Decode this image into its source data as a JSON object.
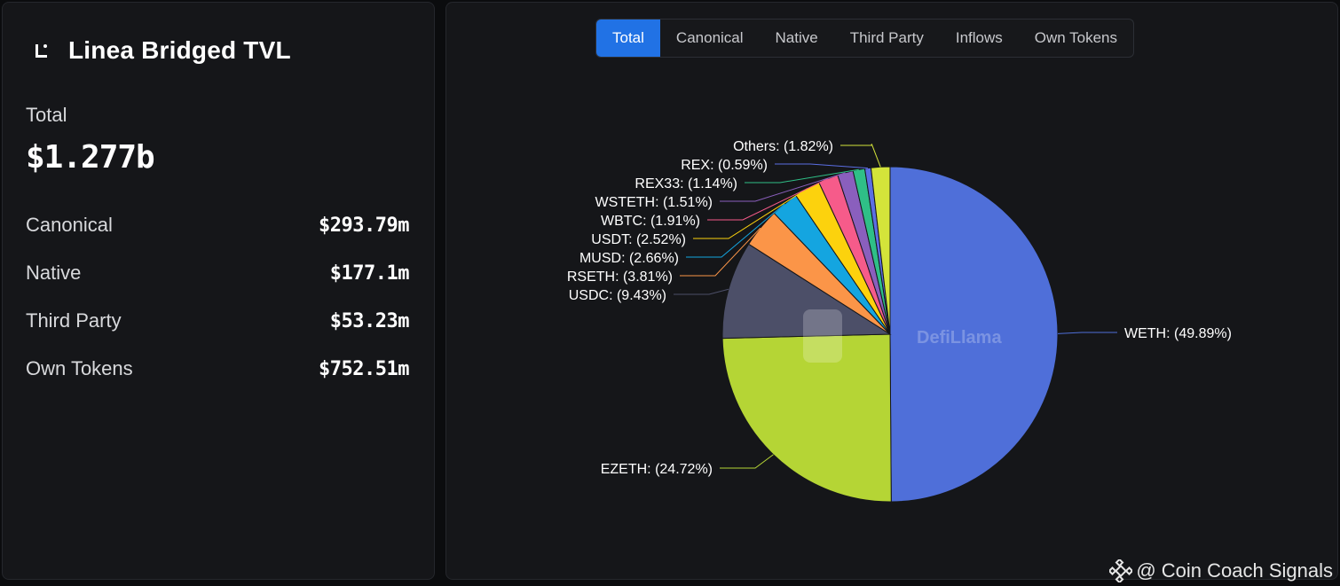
{
  "summary": {
    "title": "Linea Bridged TVL",
    "total_label": "Total",
    "total_value": "$1.277b",
    "rows": [
      {
        "label": "Canonical",
        "value": "$293.79m"
      },
      {
        "label": "Native",
        "value": "$177.1m"
      },
      {
        "label": "Third Party",
        "value": "$53.23m"
      },
      {
        "label": "Own Tokens",
        "value": "$752.51m"
      }
    ]
  },
  "tabs": [
    "Total",
    "Canonical",
    "Native",
    "Third Party",
    "Inflows",
    "Own Tokens"
  ],
  "active_tab": "Total",
  "chart_watermark": "DefiLlama",
  "footer_watermark": "@ Coin Coach Signals",
  "chart_data": {
    "type": "pie",
    "slices": [
      {
        "label": "WETH",
        "value": 49.89,
        "display": "WETH: (49.89%)",
        "color": "#4f6fd9"
      },
      {
        "label": "EZETH",
        "value": 24.72,
        "display": "EZETH: (24.72%)",
        "color": "#b5d535"
      },
      {
        "label": "USDC",
        "value": 9.43,
        "display": "USDC: (9.43%)",
        "color": "#4c4f68"
      },
      {
        "label": "RSETH",
        "value": 3.81,
        "display": "RSETH: (3.81%)",
        "color": "#fb9548"
      },
      {
        "label": "MUSD",
        "value": 2.66,
        "display": "MUSD: (2.66%)",
        "color": "#14a5e0"
      },
      {
        "label": "USDT",
        "value": 2.52,
        "display": "USDT: (2.52%)",
        "color": "#fcd20d"
      },
      {
        "label": "WBTC",
        "value": 1.91,
        "display": "WBTC: (1.91%)",
        "color": "#f65b8a"
      },
      {
        "label": "WSTETH",
        "value": 1.51,
        "display": "WSTETH: (1.51%)",
        "color": "#8a5fbd"
      },
      {
        "label": "REX33",
        "value": 1.14,
        "display": "REX33: (1.14%)",
        "color": "#2fbf87"
      },
      {
        "label": "REX",
        "value": 0.59,
        "display": "REX: (0.59%)",
        "color": "#5b6ee3"
      },
      {
        "label": "Others",
        "value": 1.82,
        "display": "Others: (1.82%)",
        "color": "#d4e43a"
      }
    ]
  }
}
